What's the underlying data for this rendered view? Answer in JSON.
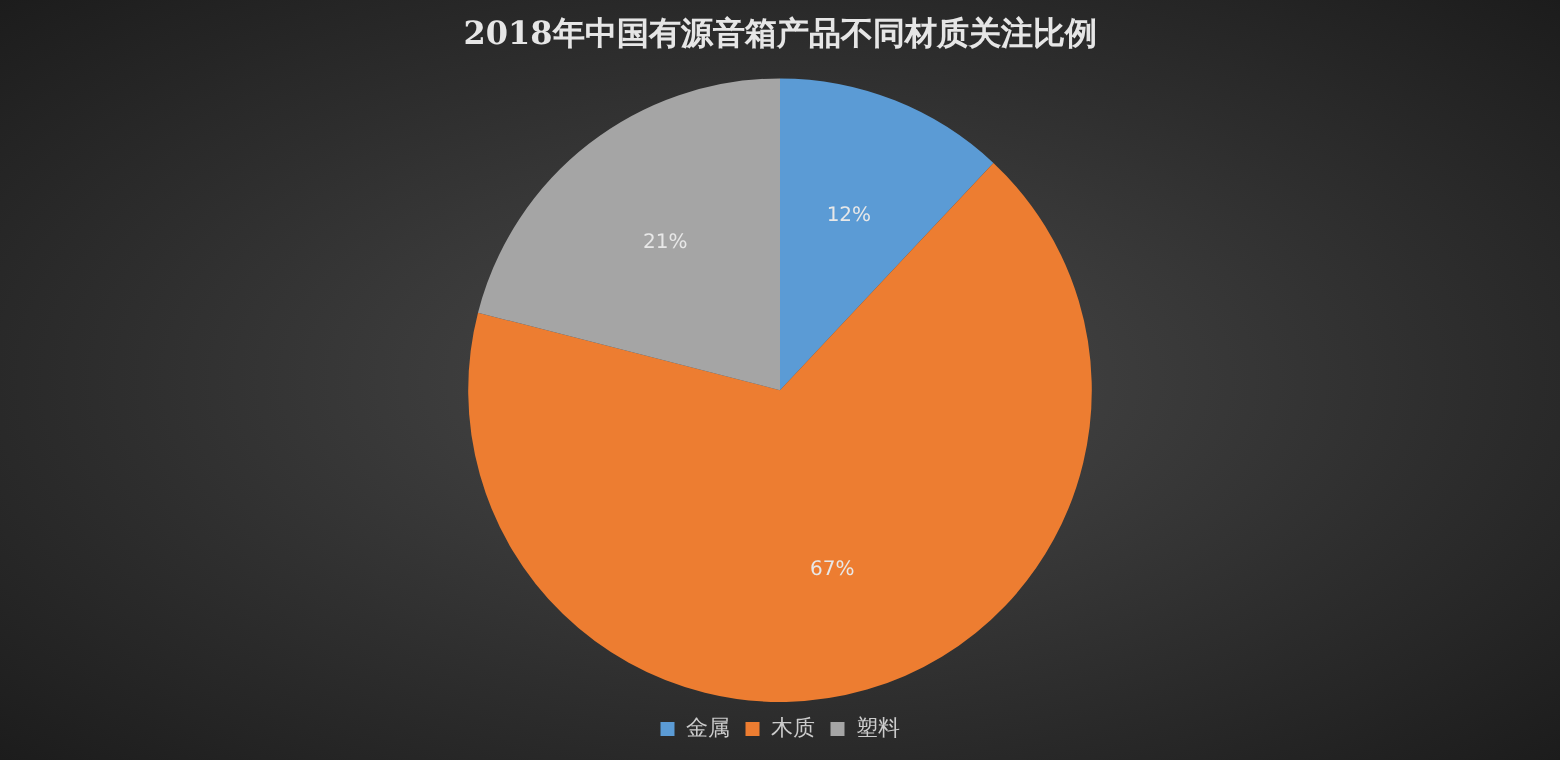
{
  "chart_data": {
    "type": "pie",
    "title": "2018年中国有源音箱产品不同材质关注比例",
    "categories": [
      "金属",
      "木质",
      "塑料"
    ],
    "values": [
      12,
      67,
      21
    ],
    "colors": [
      "#5b9bd5",
      "#ed7d31",
      "#a5a5a5"
    ],
    "value_labels": [
      "12%",
      "67%",
      "21%"
    ],
    "legend": "bottom"
  }
}
